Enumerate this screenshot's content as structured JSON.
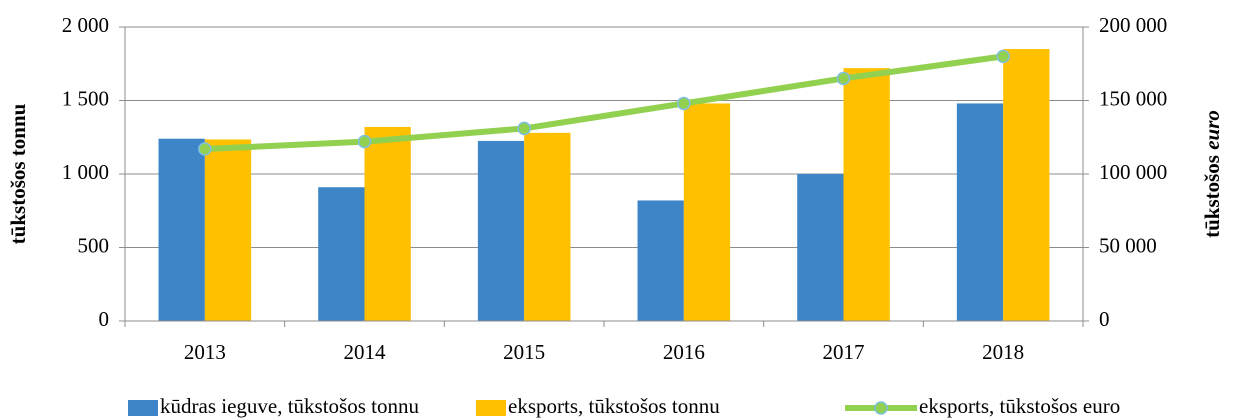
{
  "chart_data": {
    "type": "bar_line",
    "categories": [
      "2013",
      "2014",
      "2015",
      "2016",
      "2017",
      "2018"
    ],
    "series": [
      {
        "name": "kūdras ieguve, tūkstošos tonnu",
        "color": "#3d85c6",
        "type": "bar",
        "values": [
          1240,
          910,
          1225,
          820,
          1000,
          1480
        ]
      },
      {
        "name": "eksports, tūkstošos tonnu",
        "color": "#ffc000",
        "type": "bar",
        "values": [
          1235,
          1320,
          1280,
          1480,
          1720,
          1850
        ]
      },
      {
        "name": "eksports, tūkstošos euro",
        "color": "#92d050",
        "type": "line",
        "axis": "y2",
        "values": [
          117000,
          122000,
          131000,
          148000,
          165000,
          180000
        ]
      }
    ],
    "y_label": "tūkstošos tonnu",
    "y2_label": [
      "tūkstošos",
      "euro"
    ],
    "ylim": [
      0,
      2000
    ],
    "yticks": [
      0,
      500,
      {
        "value": 1000,
        "label": "1 000"
      },
      {
        "value": 1500,
        "label": "1 500"
      },
      {
        "value": 2000,
        "label": "2 000"
      }
    ],
    "y2lim": [
      0,
      200000
    ],
    "y2ticks": [
      0,
      {
        "value": 50000,
        "label": "50 000"
      },
      {
        "value": 100000,
        "label": "100 000"
      },
      {
        "value": 150000,
        "label": "150 000"
      },
      {
        "value": 200000,
        "label": "200 000"
      }
    ],
    "grid": true,
    "legend": "bottom"
  }
}
